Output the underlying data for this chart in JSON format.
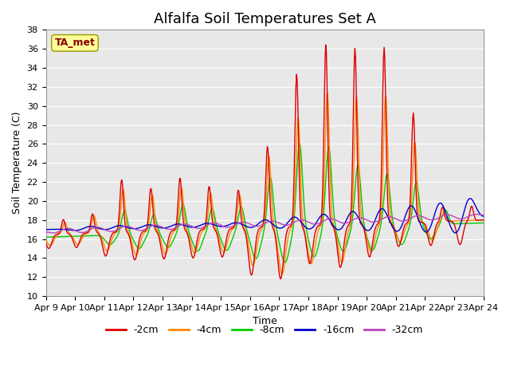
{
  "title": "Alfalfa Soil Temperatures Set A",
  "xlabel": "Time",
  "ylabel": "Soil Temperature (C)",
  "annotation": "TA_met",
  "ylim": [
    10,
    38
  ],
  "yticks": [
    10,
    12,
    14,
    16,
    18,
    20,
    22,
    24,
    26,
    28,
    30,
    32,
    34,
    36,
    38
  ],
  "x_labels": [
    "Apr 9",
    "Apr 10",
    "Apr 11",
    "Apr 12",
    "Apr 13",
    "Apr 14",
    "Apr 15",
    "Apr 16",
    "Apr 17",
    "Apr 18",
    "Apr 19",
    "Apr 20",
    "Apr 21",
    "Apr 22",
    "Apr 23",
    "Apr 24"
  ],
  "colors": {
    "-2cm": "#dd0000",
    "-4cm": "#ff8800",
    "-8cm": "#00cc00",
    "-16cm": "#0000cc",
    "-32cm": "#bb44bb"
  },
  "legend_labels": [
    "-2cm",
    "-4cm",
    "-8cm",
    "-16cm",
    "-32cm"
  ],
  "background_color": "#e8e8e8",
  "annotation_box_color": "#ffff99",
  "annotation_text_color": "#880000",
  "title_fontsize": 13,
  "axis_label_fontsize": 9,
  "tick_fontsize": 8
}
